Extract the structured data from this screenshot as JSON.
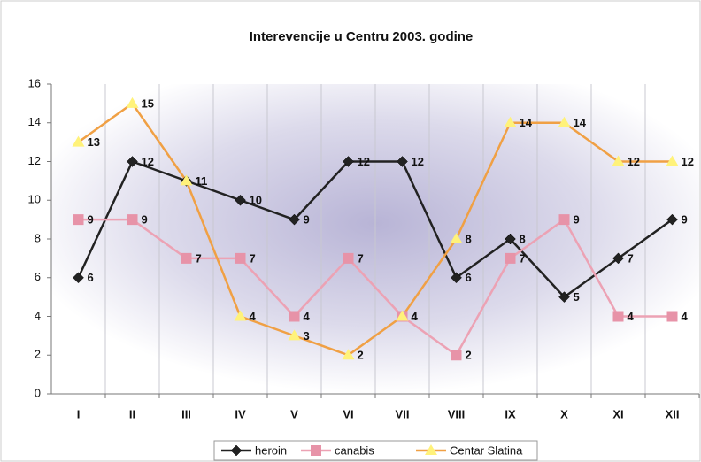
{
  "chart_data": {
    "type": "line",
    "title": "Interevencije u Centru 2003. godine",
    "categories": [
      "I",
      "II",
      "III",
      "IV",
      "V",
      "VI",
      "VII",
      "VIII",
      "IX",
      "X",
      "XI",
      "XII"
    ],
    "series": [
      {
        "name": "heroin",
        "color": "#222222",
        "marker_color": "#222222",
        "marker": "diamond",
        "values": [
          6,
          12,
          11,
          10,
          9,
          12,
          12,
          6,
          8,
          5,
          7,
          9
        ]
      },
      {
        "name": "canabis",
        "color": "#eca2b4",
        "marker_color": "#e793a8",
        "marker": "square",
        "values": [
          9,
          9,
          7,
          7,
          4,
          7,
          4,
          2,
          7,
          9,
          4,
          4
        ]
      },
      {
        "name": "Centar Slatina",
        "color": "#f0a044",
        "marker_color": "#fff27a",
        "marker": "triangle",
        "values": [
          13,
          15,
          11,
          4,
          3,
          2,
          4,
          8,
          14,
          14,
          12,
          12
        ]
      }
    ],
    "ylim": [
      0,
      16
    ],
    "yticks": [
      0,
      2,
      4,
      6,
      8,
      10,
      12,
      14,
      16
    ],
    "grid": true,
    "legend": "bottom"
  }
}
